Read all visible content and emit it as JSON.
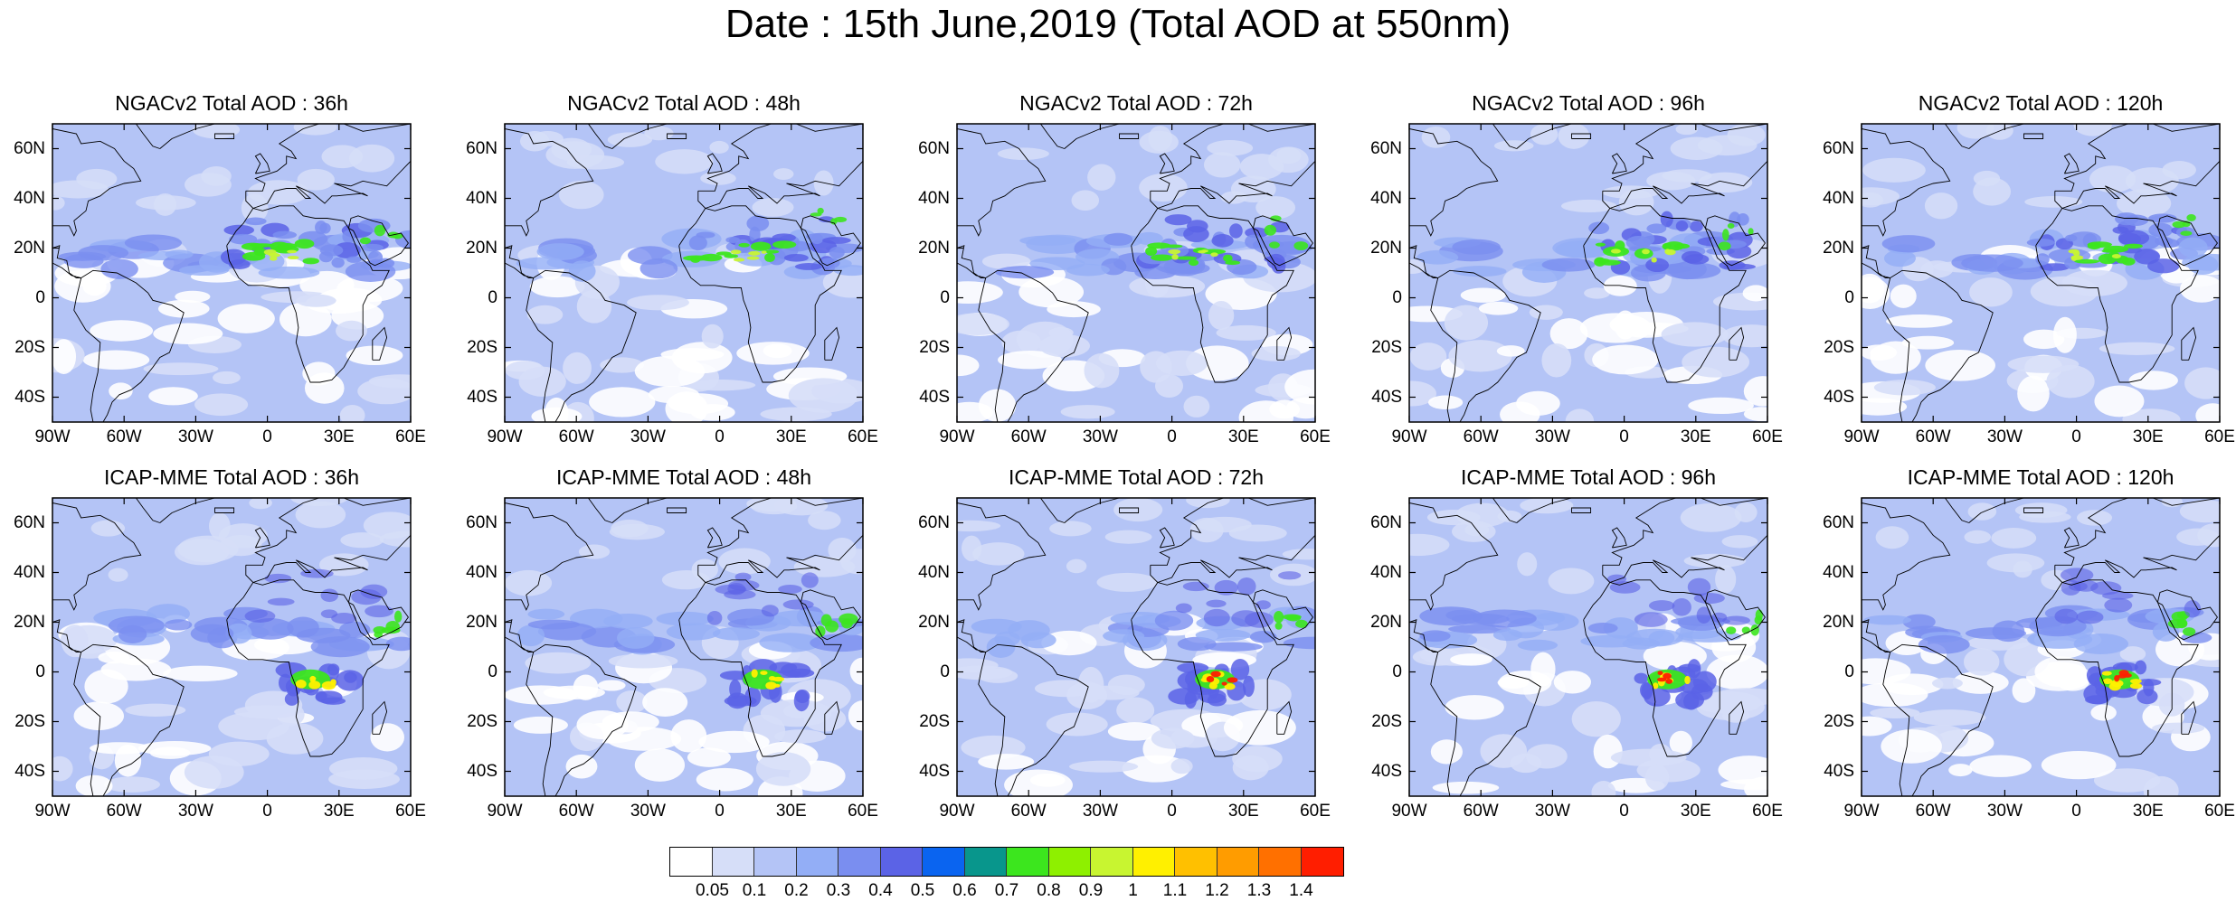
{
  "title": "Date : 15th June,2019 (Total AOD at 550nm)",
  "panels_top": [
    {
      "title": "NGACv2 Total AOD : 36h"
    },
    {
      "title": "NGACv2 Total AOD : 48h"
    },
    {
      "title": "NGACv2 Total AOD : 72h"
    },
    {
      "title": "NGACv2 Total AOD : 96h"
    },
    {
      "title": "NGACv2 Total AOD : 120h"
    }
  ],
  "panels_bottom": [
    {
      "title": "ICAP-MME Total AOD : 36h"
    },
    {
      "title": "ICAP-MME Total AOD : 48h"
    },
    {
      "title": "ICAP-MME Total AOD : 72h"
    },
    {
      "title": "ICAP-MME Total AOD : 96h"
    },
    {
      "title": "ICAP-MME Total AOD : 120h"
    }
  ],
  "lat_labels": [
    "60N",
    "40N",
    "20N",
    "0",
    "20S",
    "40S"
  ],
  "lon_labels": [
    "90W",
    "60W",
    "30W",
    "0",
    "30E",
    "60E"
  ],
  "colorbar": {
    "labels": [
      "0.05",
      "0.1",
      "0.2",
      "0.3",
      "0.4",
      "0.5",
      "0.6",
      "0.7",
      "0.8",
      "0.9",
      "1",
      "1.1",
      "1.2",
      "1.3",
      "1.4"
    ],
    "colors": [
      "#ffffff",
      "#d6def8",
      "#b4c4f6",
      "#93aef6",
      "#7a8ef0",
      "#5b63e6",
      "#0a64f0",
      "#08968c",
      "#3ce61e",
      "#8ef000",
      "#c8f530",
      "#fff000",
      "#ffc000",
      "#ff9c00",
      "#ff7000",
      "#ff1e00"
    ]
  }
}
